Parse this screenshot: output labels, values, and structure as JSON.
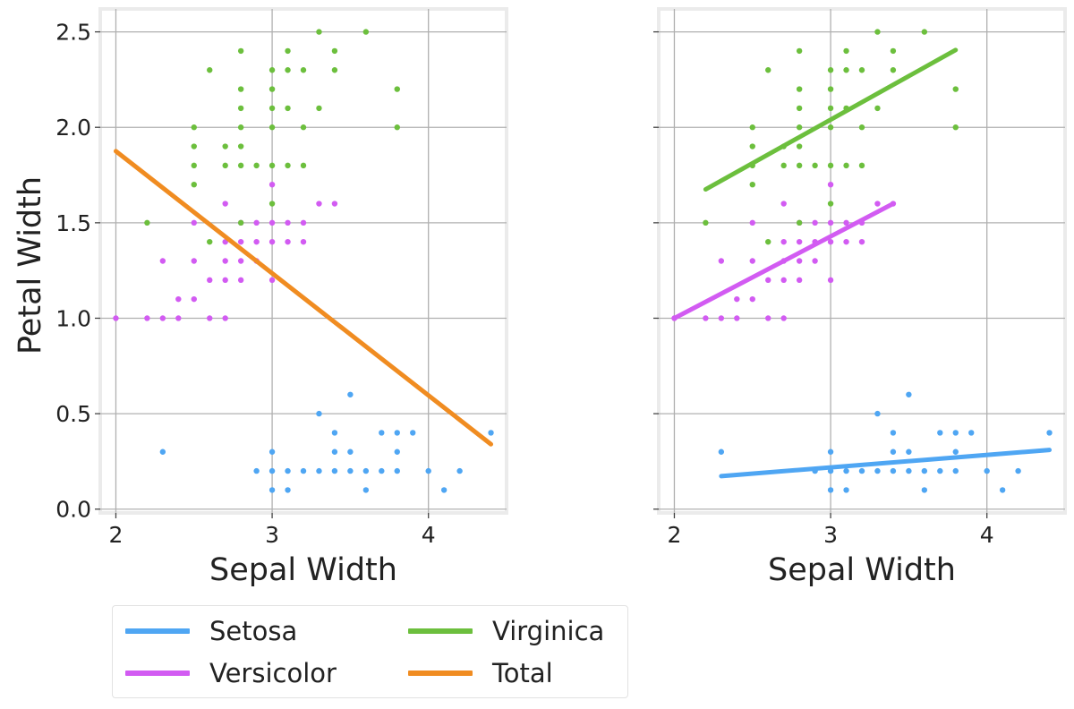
{
  "chart_data": [
    {
      "type": "scatter",
      "title": "",
      "xlabel": "Sepal Width",
      "ylabel": "Petal Width",
      "xlim": [
        1.9,
        4.5
      ],
      "ylim": [
        -0.02,
        2.62
      ],
      "xticks": [
        2,
        3,
        4
      ],
      "yticks": [
        0.0,
        0.5,
        1.0,
        1.5,
        2.0,
        2.5
      ],
      "xtick_labels": [
        "2",
        "3",
        "4"
      ],
      "ytick_labels": [
        "0.0",
        "0.5",
        "1.0",
        "1.5",
        "2.0",
        "2.5"
      ],
      "grid": true,
      "series": [
        {
          "name": "Setosa",
          "color": "#4fa6f3",
          "points": [
            [
              2.3,
              0.3
            ],
            [
              2.9,
              0.2
            ],
            [
              3.0,
              0.1
            ],
            [
              3.0,
              0.2
            ],
            [
              3.0,
              0.3
            ],
            [
              3.1,
              0.1
            ],
            [
              3.1,
              0.2
            ],
            [
              3.2,
              0.2
            ],
            [
              3.3,
              0.2
            ],
            [
              3.3,
              0.5
            ],
            [
              3.4,
              0.2
            ],
            [
              3.4,
              0.3
            ],
            [
              3.4,
              0.4
            ],
            [
              3.5,
              0.2
            ],
            [
              3.5,
              0.3
            ],
            [
              3.5,
              0.6
            ],
            [
              3.6,
              0.1
            ],
            [
              3.6,
              0.2
            ],
            [
              3.7,
              0.2
            ],
            [
              3.7,
              0.4
            ],
            [
              3.8,
              0.2
            ],
            [
              3.8,
              0.3
            ],
            [
              3.8,
              0.4
            ],
            [
              3.9,
              0.4
            ],
            [
              4.0,
              0.2
            ],
            [
              4.1,
              0.1
            ],
            [
              4.2,
              0.2
            ],
            [
              4.4,
              0.4
            ]
          ]
        },
        {
          "name": "Versicolor",
          "color": "#d25bf2",
          "points": [
            [
              2.0,
              1.0
            ],
            [
              2.2,
              1.0
            ],
            [
              2.3,
              1.0
            ],
            [
              2.3,
              1.3
            ],
            [
              2.4,
              1.0
            ],
            [
              2.4,
              1.1
            ],
            [
              2.5,
              1.1
            ],
            [
              2.5,
              1.3
            ],
            [
              2.5,
              1.5
            ],
            [
              2.6,
              1.0
            ],
            [
              2.6,
              1.2
            ],
            [
              2.7,
              1.0
            ],
            [
              2.7,
              1.2
            ],
            [
              2.7,
              1.3
            ],
            [
              2.7,
              1.4
            ],
            [
              2.7,
              1.6
            ],
            [
              2.8,
              1.2
            ],
            [
              2.8,
              1.3
            ],
            [
              2.8,
              1.4
            ],
            [
              2.8,
              1.5
            ],
            [
              2.9,
              1.3
            ],
            [
              2.9,
              1.4
            ],
            [
              2.9,
              1.5
            ],
            [
              3.0,
              1.2
            ],
            [
              3.0,
              1.4
            ],
            [
              3.0,
              1.5
            ],
            [
              3.0,
              1.7
            ],
            [
              3.1,
              1.4
            ],
            [
              3.1,
              1.5
            ],
            [
              3.2,
              1.4
            ],
            [
              3.2,
              1.5
            ],
            [
              3.3,
              1.6
            ],
            [
              3.4,
              1.6
            ]
          ]
        },
        {
          "name": "Virginica",
          "color": "#6cbf3d",
          "points": [
            [
              2.2,
              1.5
            ],
            [
              2.5,
              1.7
            ],
            [
              2.5,
              1.8
            ],
            [
              2.5,
              1.9
            ],
            [
              2.5,
              2.0
            ],
            [
              2.6,
              1.4
            ],
            [
              2.6,
              2.3
            ],
            [
              2.7,
              1.8
            ],
            [
              2.7,
              1.9
            ],
            [
              2.8,
              1.5
            ],
            [
              2.8,
              1.8
            ],
            [
              2.8,
              1.9
            ],
            [
              2.8,
              2.0
            ],
            [
              2.8,
              2.1
            ],
            [
              2.8,
              2.2
            ],
            [
              2.8,
              2.4
            ],
            [
              2.9,
              1.8
            ],
            [
              3.0,
              1.6
            ],
            [
              3.0,
              1.8
            ],
            [
              3.0,
              2.0
            ],
            [
              3.0,
              2.1
            ],
            [
              3.0,
              2.2
            ],
            [
              3.0,
              2.3
            ],
            [
              3.1,
              1.8
            ],
            [
              3.1,
              2.1
            ],
            [
              3.1,
              2.3
            ],
            [
              3.1,
              2.4
            ],
            [
              3.2,
              1.8
            ],
            [
              3.2,
              2.0
            ],
            [
              3.2,
              2.3
            ],
            [
              3.3,
              2.1
            ],
            [
              3.3,
              2.5
            ],
            [
              3.4,
              2.3
            ],
            [
              3.4,
              2.4
            ],
            [
              3.6,
              2.5
            ],
            [
              3.8,
              2.0
            ],
            [
              3.8,
              2.2
            ]
          ]
        }
      ],
      "fit_lines": [
        {
          "name": "Total",
          "color": "#f08c21",
          "x": [
            2.0,
            4.4
          ],
          "y": [
            1.875,
            0.34
          ]
        }
      ]
    },
    {
      "type": "scatter",
      "title": "",
      "xlabel": "Sepal Width",
      "ylabel": "",
      "xlim": [
        1.9,
        4.5
      ],
      "ylim": [
        -0.02,
        2.62
      ],
      "xticks": [
        2,
        3,
        4
      ],
      "yticks": [
        0.0,
        0.5,
        1.0,
        1.5,
        2.0,
        2.5
      ],
      "xtick_labels": [
        "2",
        "3",
        "4"
      ],
      "grid": true,
      "series": [
        {
          "name": "Setosa",
          "color": "#4fa6f3",
          "points": [
            [
              2.3,
              0.3
            ],
            [
              2.9,
              0.2
            ],
            [
              3.0,
              0.1
            ],
            [
              3.0,
              0.2
            ],
            [
              3.0,
              0.3
            ],
            [
              3.1,
              0.1
            ],
            [
              3.1,
              0.2
            ],
            [
              3.2,
              0.2
            ],
            [
              3.3,
              0.2
            ],
            [
              3.3,
              0.5
            ],
            [
              3.4,
              0.2
            ],
            [
              3.4,
              0.3
            ],
            [
              3.4,
              0.4
            ],
            [
              3.5,
              0.2
            ],
            [
              3.5,
              0.3
            ],
            [
              3.5,
              0.6
            ],
            [
              3.6,
              0.1
            ],
            [
              3.6,
              0.2
            ],
            [
              3.7,
              0.2
            ],
            [
              3.7,
              0.4
            ],
            [
              3.8,
              0.2
            ],
            [
              3.8,
              0.3
            ],
            [
              3.8,
              0.4
            ],
            [
              3.9,
              0.4
            ],
            [
              4.0,
              0.2
            ],
            [
              4.1,
              0.1
            ],
            [
              4.2,
              0.2
            ],
            [
              4.4,
              0.4
            ]
          ]
        },
        {
          "name": "Versicolor",
          "color": "#d25bf2",
          "points": [
            [
              2.0,
              1.0
            ],
            [
              2.2,
              1.0
            ],
            [
              2.3,
              1.0
            ],
            [
              2.3,
              1.3
            ],
            [
              2.4,
              1.0
            ],
            [
              2.4,
              1.1
            ],
            [
              2.5,
              1.1
            ],
            [
              2.5,
              1.3
            ],
            [
              2.5,
              1.5
            ],
            [
              2.6,
              1.0
            ],
            [
              2.6,
              1.2
            ],
            [
              2.7,
              1.0
            ],
            [
              2.7,
              1.2
            ],
            [
              2.7,
              1.3
            ],
            [
              2.7,
              1.4
            ],
            [
              2.7,
              1.6
            ],
            [
              2.8,
              1.2
            ],
            [
              2.8,
              1.3
            ],
            [
              2.8,
              1.4
            ],
            [
              2.8,
              1.5
            ],
            [
              2.9,
              1.3
            ],
            [
              2.9,
              1.4
            ],
            [
              2.9,
              1.5
            ],
            [
              3.0,
              1.2
            ],
            [
              3.0,
              1.4
            ],
            [
              3.0,
              1.5
            ],
            [
              3.0,
              1.7
            ],
            [
              3.1,
              1.4
            ],
            [
              3.1,
              1.5
            ],
            [
              3.2,
              1.4
            ],
            [
              3.2,
              1.5
            ],
            [
              3.3,
              1.6
            ],
            [
              3.4,
              1.6
            ]
          ]
        },
        {
          "name": "Virginica",
          "color": "#6cbf3d",
          "points": [
            [
              2.2,
              1.5
            ],
            [
              2.5,
              1.7
            ],
            [
              2.5,
              1.8
            ],
            [
              2.5,
              1.9
            ],
            [
              2.5,
              2.0
            ],
            [
              2.6,
              1.4
            ],
            [
              2.6,
              2.3
            ],
            [
              2.7,
              1.8
            ],
            [
              2.7,
              1.9
            ],
            [
              2.8,
              1.5
            ],
            [
              2.8,
              1.8
            ],
            [
              2.8,
              1.9
            ],
            [
              2.8,
              2.0
            ],
            [
              2.8,
              2.1
            ],
            [
              2.8,
              2.2
            ],
            [
              2.8,
              2.4
            ],
            [
              2.9,
              1.8
            ],
            [
              3.0,
              1.6
            ],
            [
              3.0,
              1.8
            ],
            [
              3.0,
              2.0
            ],
            [
              3.0,
              2.1
            ],
            [
              3.0,
              2.2
            ],
            [
              3.0,
              2.3
            ],
            [
              3.1,
              1.8
            ],
            [
              3.1,
              2.1
            ],
            [
              3.1,
              2.3
            ],
            [
              3.1,
              2.4
            ],
            [
              3.2,
              1.8
            ],
            [
              3.2,
              2.0
            ],
            [
              3.2,
              2.3
            ],
            [
              3.3,
              2.1
            ],
            [
              3.3,
              2.5
            ],
            [
              3.4,
              2.3
            ],
            [
              3.4,
              2.4
            ],
            [
              3.6,
              2.5
            ],
            [
              3.8,
              2.0
            ],
            [
              3.8,
              2.2
            ]
          ]
        }
      ],
      "fit_lines": [
        {
          "name": "Setosa",
          "color": "#4fa6f3",
          "x": [
            2.3,
            4.4
          ],
          "y": [
            0.173,
            0.31
          ]
        },
        {
          "name": "Versicolor",
          "color": "#d25bf2",
          "x": [
            2.0,
            3.4
          ],
          "y": [
            1.0,
            1.6
          ]
        },
        {
          "name": "Virginica",
          "color": "#6cbf3d",
          "x": [
            2.2,
            3.8
          ],
          "y": [
            1.675,
            2.405
          ]
        }
      ]
    }
  ],
  "legend": {
    "placement": "bottom-left",
    "items": [
      {
        "label": "Setosa",
        "color": "#4fa6f3"
      },
      {
        "label": "Virginica",
        "color": "#6cbf3d"
      },
      {
        "label": "Versicolor",
        "color": "#d25bf2"
      },
      {
        "label": "Total",
        "color": "#f08c21"
      }
    ]
  }
}
